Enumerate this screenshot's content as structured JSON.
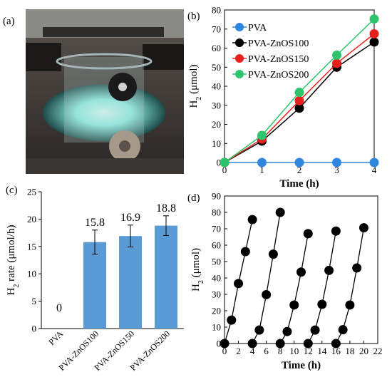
{
  "panels": {
    "a": {
      "label": "(a)"
    },
    "b": {
      "label": "(b)"
    },
    "c": {
      "label": "(c)"
    },
    "d": {
      "label": "(d)"
    }
  },
  "photo": {
    "colors": {
      "background": "#2f2b29",
      "glow": "#8ff2e6",
      "beaker_ring": "#a7b4b8"
    }
  },
  "chart_data": [
    {
      "panel": "b",
      "type": "line",
      "xlabel": "Time (h)",
      "ylabel": "H2 (μmol)",
      "ylabel_main": "H",
      "ylabel_sub": "2",
      "ylabel_rest": " (μmol)",
      "xlim": [
        0,
        4
      ],
      "ylim": [
        0,
        80
      ],
      "xticks": [
        0,
        1,
        2,
        3,
        4
      ],
      "yticks": [
        0,
        10,
        20,
        30,
        40,
        50,
        60,
        70,
        80
      ],
      "legend_position": "top-left",
      "grid": false,
      "series": [
        {
          "name": "PVA",
          "color": "#2e86de",
          "x": [
            0,
            1,
            2,
            3,
            4
          ],
          "y": [
            0,
            0,
            0,
            0,
            0
          ]
        },
        {
          "name": "PVA-ZnOS100",
          "color": "#000000",
          "x": [
            0,
            1,
            2,
            3,
            4
          ],
          "y": [
            0,
            11.2,
            28.5,
            50.0,
            63.2
          ]
        },
        {
          "name": "PVA-ZnOS150",
          "color": "#e8201d",
          "x": [
            0,
            1,
            2,
            3,
            4
          ],
          "y": [
            0,
            12.3,
            32.4,
            52.0,
            67.5
          ]
        },
        {
          "name": "PVA-ZnOS200",
          "color": "#2ec46b",
          "x": [
            0,
            1,
            2,
            3,
            4
          ],
          "y": [
            0,
            14.2,
            36.8,
            56.3,
            75.3
          ]
        }
      ]
    },
    {
      "panel": "c",
      "type": "bar",
      "ylabel": "H2 rate (μmol/h)",
      "ylabel_main": "H",
      "ylabel_sub": "2",
      "ylabel_rest": " rate (μmol/h)",
      "ylim": [
        0,
        25
      ],
      "yticks": [
        0,
        5,
        10,
        15,
        20,
        25
      ],
      "bar_color": "#5b9bd5",
      "categories": [
        "PVA",
        "PVA-ZnOS100",
        "PVA-ZnOS150",
        "PVA-ZnOS200"
      ],
      "values": [
        0,
        15.8,
        16.9,
        18.8
      ],
      "data_labels": [
        "0",
        "15.8",
        "16.9",
        "18.8"
      ],
      "errors": [
        0,
        2.2,
        2.0,
        1.8
      ]
    },
    {
      "panel": "d",
      "type": "scatter",
      "xlabel": "Time (h)",
      "ylabel": "H2 (μmol)",
      "ylabel_main": "H",
      "ylabel_sub": "2",
      "ylabel_rest": " (μmol)",
      "xlim": [
        0,
        22
      ],
      "ylim": [
        0,
        90
      ],
      "xticks": [
        0,
        2,
        4,
        6,
        8,
        10,
        12,
        14,
        16,
        18,
        20,
        22
      ],
      "yticks": [
        0,
        10,
        20,
        30,
        40,
        50,
        60,
        70,
        80,
        90
      ],
      "grid": false,
      "cycles": [
        {
          "x": [
            0,
            1,
            2,
            3,
            4
          ],
          "y": [
            0,
            14.3,
            36.6,
            56.1,
            75.6
          ]
        },
        {
          "x": [
            4,
            5,
            6,
            7,
            8
          ],
          "y": [
            0,
            8.2,
            29.8,
            54.5,
            80.0
          ]
        },
        {
          "x": [
            8,
            9,
            10,
            11,
            12
          ],
          "y": [
            0,
            7.3,
            23.5,
            43.6,
            67.0
          ]
        },
        {
          "x": [
            12,
            13,
            14,
            15,
            16
          ],
          "y": [
            0,
            8.2,
            23.9,
            44.6,
            68.6
          ]
        },
        {
          "x": [
            16,
            17,
            18,
            19,
            20
          ],
          "y": [
            0,
            8.4,
            23.5,
            46.1,
            70.6
          ]
        }
      ]
    }
  ]
}
